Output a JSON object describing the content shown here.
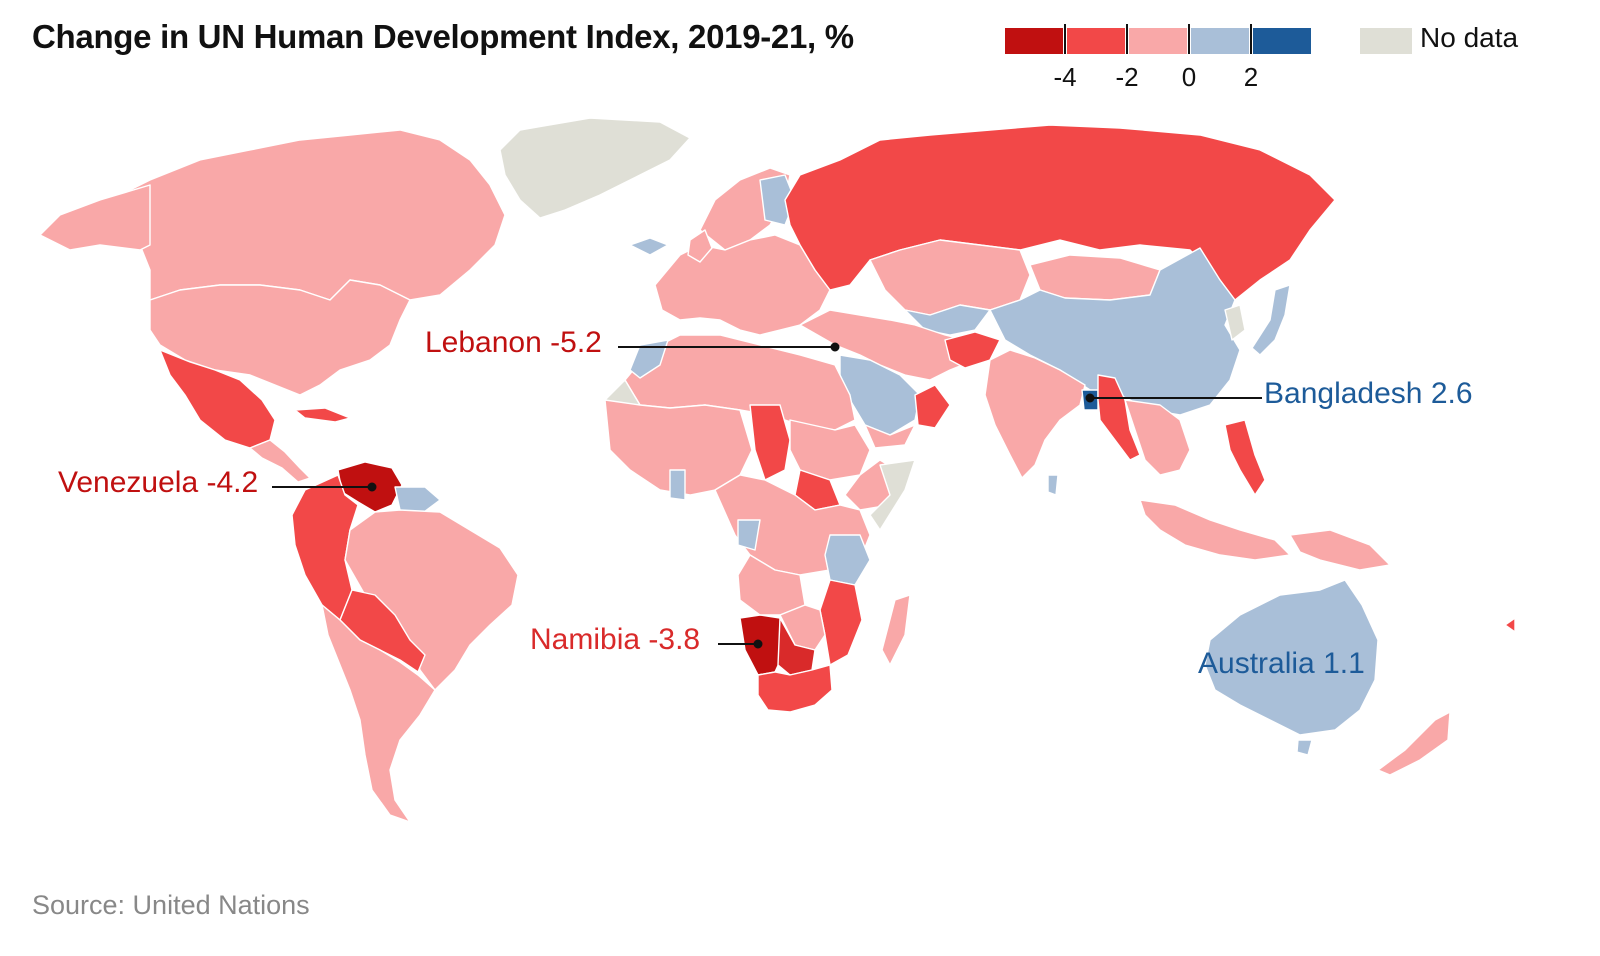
{
  "title": "Change in UN Human Development Index, 2019-21, %",
  "legend": {
    "bins": [
      {
        "color": "#c01010"
      },
      {
        "color": "#f24848"
      },
      {
        "color": "#f9a8a8"
      },
      {
        "color": "#a9bfd8"
      },
      {
        "color": "#1d5b99"
      }
    ],
    "ticks": [
      "-4",
      "-2",
      "0",
      "2"
    ],
    "no_data": {
      "label": "No data",
      "color": "#dfdfd6"
    }
  },
  "callouts": [
    {
      "name": "Lebanon",
      "value": "-5.2",
      "color": "#c01010"
    },
    {
      "name": "Venezuela",
      "value": "-4.2",
      "color": "#c01010"
    },
    {
      "name": "Namibia",
      "value": "-3.8",
      "color": "#d92a2a"
    },
    {
      "name": "Bangladesh",
      "value": "2.6",
      "color": "#1d5b99"
    },
    {
      "name": "Australia",
      "value": "1.1",
      "color": "#1d5b99"
    }
  ],
  "source": "Source: United Nations"
}
